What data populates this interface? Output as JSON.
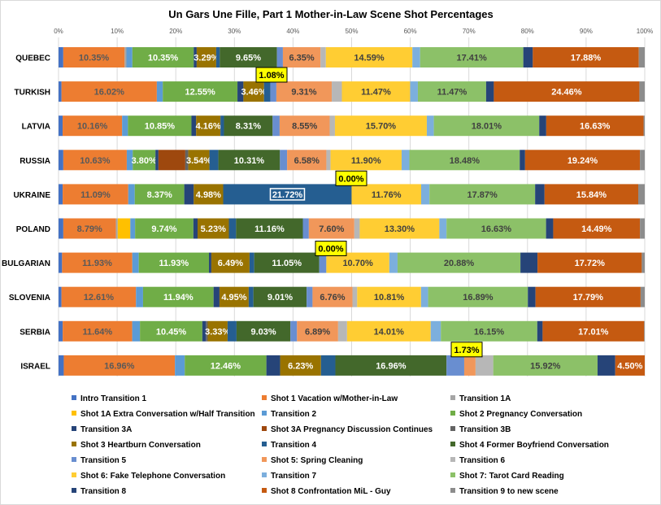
{
  "chart_data": {
    "type": "bar",
    "orientation": "horizontal",
    "stacked": true,
    "normalized": true,
    "title": "Un Gars Une Fille, Part 1 Mother-in-Law  Scene Shot Percentages",
    "xlim": [
      0,
      100
    ],
    "x_ticks": [
      "0%",
      "10%",
      "20%",
      "30%",
      "40%",
      "50%",
      "60%",
      "70%",
      "80%",
      "90%",
      "100%"
    ],
    "grid": true,
    "legend_position": "bottom",
    "categories": [
      "QUEBEC",
      "TURKISH",
      "LATVIA",
      "RUSSIA",
      "UKRAINE",
      "POLAND",
      "BULGARIAN",
      "SLOVENIA",
      "SERBIA",
      "ISRAEL"
    ],
    "series": [
      {
        "name": "Intro Transition 1",
        "color": "#4472C4",
        "values": [
          0.8,
          0.5,
          0.7,
          0.8,
          0.7,
          0.8,
          0.6,
          0.5,
          0.7,
          0.8
        ]
      },
      {
        "name": "Shot 1 Vacation w/Mother-in-Law",
        "color": "#ED7D31",
        "values": [
          10.35,
          16.02,
          10.16,
          10.63,
          11.09,
          8.79,
          11.93,
          12.61,
          11.64,
          16.96
        ]
      },
      {
        "name": "Transition 1A",
        "color": "#A5A5A5",
        "values": [
          0.3,
          0,
          0,
          0,
          0,
          0.3,
          0,
          0,
          0,
          0
        ]
      },
      {
        "name": "Shot 1A Extra Conversation w/Half Transition",
        "color": "#FFC000",
        "values": [
          0,
          0,
          0,
          0,
          0,
          2.1,
          0,
          0,
          0,
          0
        ]
      },
      {
        "name": "Transition 2",
        "color": "#5B9BD5",
        "values": [
          1.0,
          1.0,
          1.0,
          1.0,
          1.1,
          0.8,
          1.1,
          1.2,
          1.3,
          1.5
        ]
      },
      {
        "name": "Shot 2 Pregnancy Conversation",
        "color": "#70AD47",
        "values": [
          10.35,
          12.55,
          10.85,
          3.8,
          8.37,
          9.74,
          11.93,
          11.94,
          10.45,
          12.46
        ]
      },
      {
        "name": "Transition 3A",
        "color": "#264478",
        "values": [
          0.5,
          1.0,
          0.8,
          0.5,
          1.6,
          0.7,
          0.4,
          1.0,
          0.6,
          2.1
        ]
      },
      {
        "name": "Shot 3A Pregnancy Discussion Continues",
        "color": "#9E480E",
        "values": [
          0,
          0,
          0,
          4.5,
          0,
          0,
          0,
          0,
          0,
          0
        ]
      },
      {
        "name": "Transition 3B",
        "color": "#636363",
        "values": [
          0,
          0,
          0,
          0.5,
          0,
          0,
          0,
          0,
          0.3,
          0
        ]
      },
      {
        "name": "Shot 3 Heartburn Conversation",
        "color": "#997300",
        "values": [
          3.29,
          3.46,
          4.16,
          3.54,
          4.98,
          5.23,
          6.49,
          4.95,
          3.33,
          6.23
        ]
      },
      {
        "name": "Transition 4",
        "color": "#255E91",
        "values": [
          0.6,
          1.08,
          0.6,
          1.5,
          21.72,
          1.2,
          0.8,
          0.8,
          1.5,
          2.2
        ]
      },
      {
        "name": "Shot 4 Former Boyfriend Conversation",
        "color": "#43682B",
        "values": [
          9.65,
          0,
          8.31,
          10.31,
          0,
          11.16,
          11.05,
          9.01,
          9.03,
          16.96
        ]
      },
      {
        "name": "Transition 5",
        "color": "#698ED0",
        "values": [
          1.0,
          1.0,
          1.2,
          1.2,
          0,
          1.0,
          1.2,
          1.0,
          1.1,
          2.7
        ]
      },
      {
        "name": "Shot 5: Spring Cleaning",
        "color": "#F1975A",
        "values": [
          6.35,
          9.31,
          8.55,
          6.58,
          0,
          7.6,
          0,
          6.76,
          6.89,
          1.73
        ]
      },
      {
        "name": "Transition 6",
        "color": "#B7B7B7",
        "values": [
          0.9,
          1.7,
          0.9,
          0.7,
          0,
          0.9,
          0,
          0.8,
          1.5,
          2.7
        ]
      },
      {
        "name": "Shot 6: Fake Telephone Conversation",
        "color": "#FFCD33",
        "values": [
          14.59,
          11.47,
          15.7,
          11.9,
          11.76,
          13.3,
          10.7,
          10.81,
          14.01,
          0
        ]
      },
      {
        "name": "Transition 7",
        "color": "#7CAFDD",
        "values": [
          1.3,
          1.3,
          1.2,
          1.3,
          1.4,
          1.2,
          1.4,
          1.2,
          1.7,
          0
        ]
      },
      {
        "name": "Shot 7: Tarot Card Reading",
        "color": "#8CC168",
        "values": [
          17.41,
          11.47,
          18.01,
          18.48,
          17.87,
          16.63,
          20.88,
          16.89,
          16.15,
          15.92
        ]
      },
      {
        "name": "Transition 8",
        "color": "#264478",
        "values": [
          1.6,
          1.3,
          1.2,
          0.9,
          1.6,
          1.2,
          2.9,
          1.3,
          0.9,
          2.7
        ]
      },
      {
        "name": "Shot 8 Confrontation MiL - Guy",
        "color": "#C55A11",
        "values": [
          17.88,
          24.46,
          16.63,
          19.24,
          15.84,
          14.49,
          17.72,
          17.79,
          17.01,
          4.5
        ]
      },
      {
        "name": "Transition 9 to new scene",
        "color": "#8C8C8C",
        "values": [
          1.0,
          0.9,
          0.2,
          0.8,
          1.1,
          0.8,
          0.5,
          0.7,
          0.1,
          0
        ]
      }
    ],
    "annotations": [
      "1.08%",
      "0.00%",
      "0.00%",
      "1.73%"
    ]
  }
}
